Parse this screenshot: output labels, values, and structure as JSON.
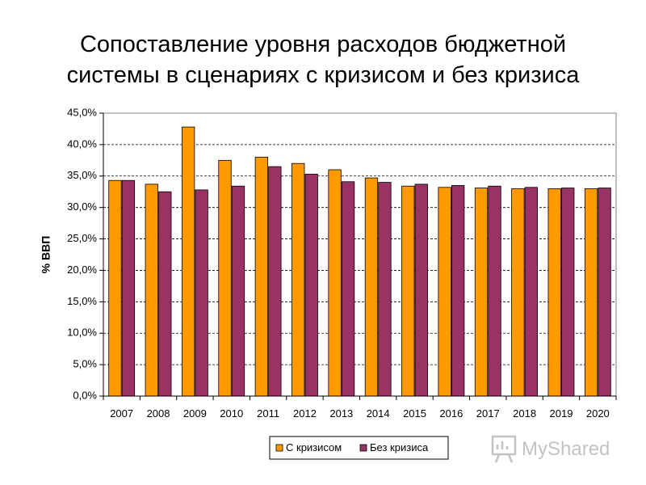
{
  "title_line1": "Сопоставление уровня расходов бюджетной",
  "title_line2": "системы в сценариях с кризисом и без кризиса",
  "watermark": "MyShared",
  "chart_data": {
    "type": "bar",
    "ylabel": "% ВВП",
    "ylim": [
      0,
      45
    ],
    "ytick_step": 5,
    "ytick_labels": [
      "0,0%",
      "5,0%",
      "10,0%",
      "15,0%",
      "20,0%",
      "25,0%",
      "30,0%",
      "35,0%",
      "40,0%",
      "45,0%"
    ],
    "grid": true,
    "legend_position": "bottom",
    "categories": [
      "2007",
      "2008",
      "2009",
      "2010",
      "2011",
      "2012",
      "2013",
      "2014",
      "2015",
      "2016",
      "2017",
      "2018",
      "2019",
      "2020"
    ],
    "series": [
      {
        "name": "С кризисом",
        "color": "#FF9900",
        "values": [
          34.3,
          33.7,
          42.8,
          37.5,
          38.0,
          37.0,
          36.0,
          34.7,
          33.4,
          33.2,
          33.1,
          33.0,
          33.0,
          33.0
        ]
      },
      {
        "name": "Без кризиса",
        "color": "#993366",
        "values": [
          34.3,
          32.5,
          32.8,
          33.4,
          36.5,
          35.3,
          34.1,
          34.0,
          33.7,
          33.5,
          33.4,
          33.2,
          33.1,
          33.1
        ]
      }
    ]
  }
}
